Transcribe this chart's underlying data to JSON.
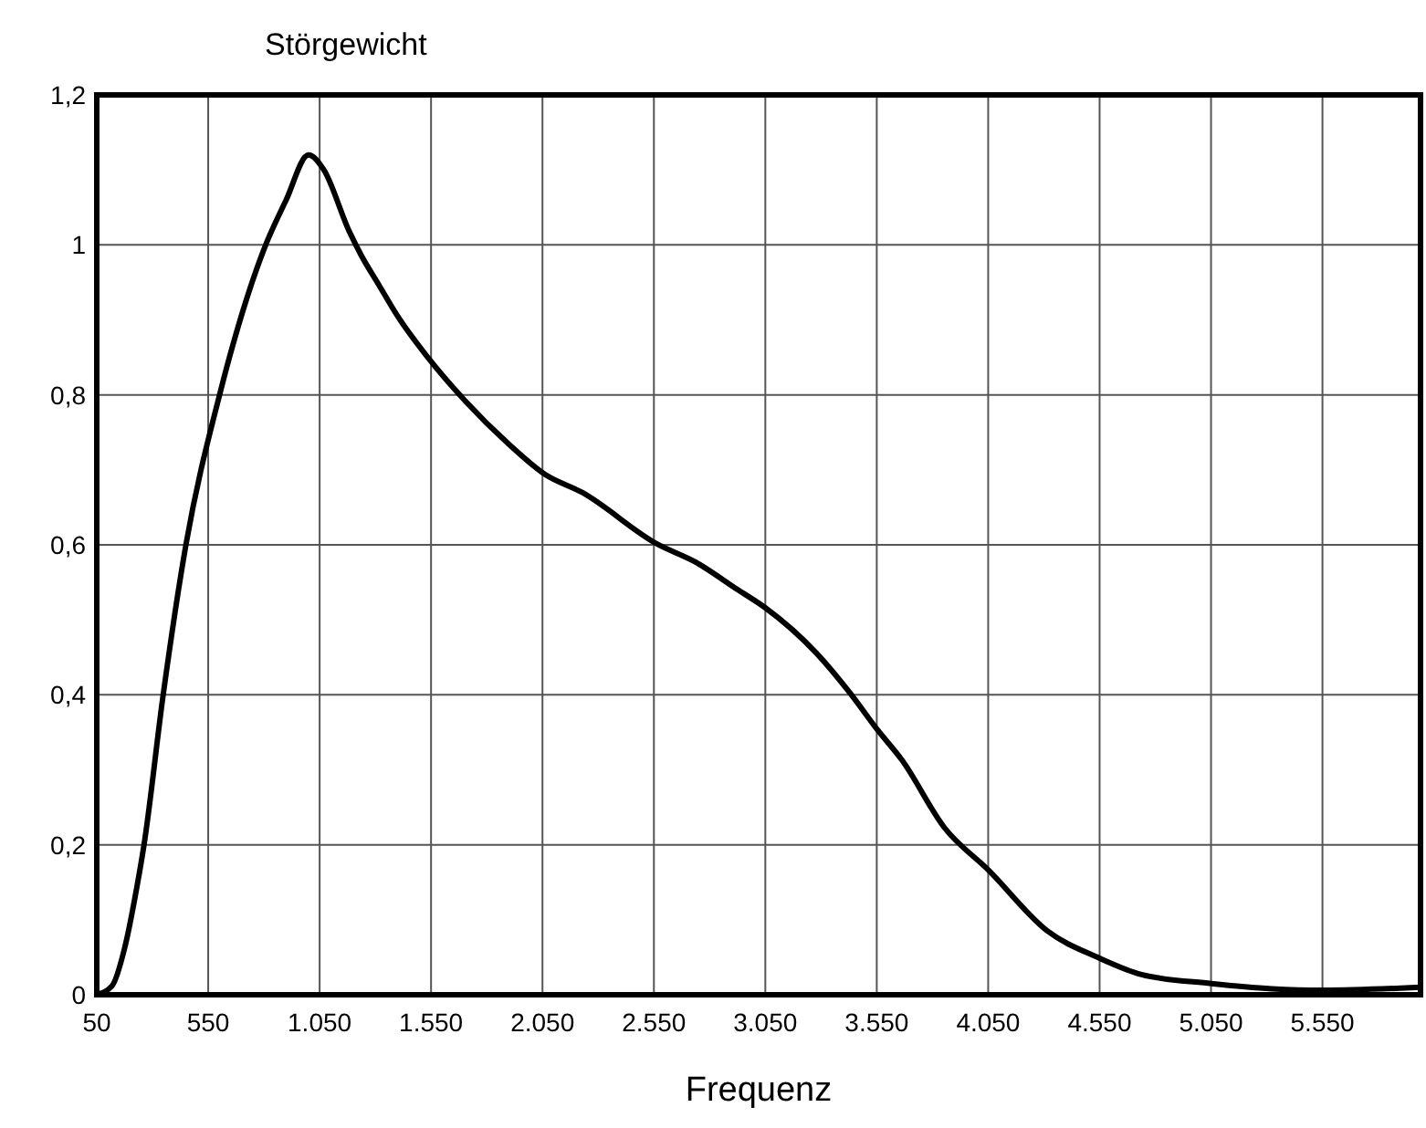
{
  "chart_data": {
    "type": "line",
    "xlabel": "Frequenz",
    "ylabel": "Störgewicht",
    "grid": true,
    "line_style": "solid",
    "marker": "none",
    "xlim": [
      50,
      5990
    ],
    "ylim": [
      0,
      1.2
    ],
    "xticks": [
      {
        "value": 50,
        "label": "50"
      },
      {
        "value": 550,
        "label": "550"
      },
      {
        "value": 1050,
        "label": "1.050"
      },
      {
        "value": 1550,
        "label": "1.550"
      },
      {
        "value": 2050,
        "label": "2.050"
      },
      {
        "value": 2550,
        "label": "2.550"
      },
      {
        "value": 3050,
        "label": "3.050"
      },
      {
        "value": 3550,
        "label": "3.550"
      },
      {
        "value": 4050,
        "label": "4.050"
      },
      {
        "value": 4550,
        "label": "4.550"
      },
      {
        "value": 5050,
        "label": "5.050"
      },
      {
        "value": 5550,
        "label": "5.550"
      }
    ],
    "yticks": [
      0,
      {
        "value": 0.2,
        "label": "0,2"
      },
      {
        "value": 0.4,
        "label": "0,4"
      },
      {
        "value": 0.6,
        "label": "0,6"
      },
      {
        "value": 0.8,
        "label": "0,8"
      },
      1,
      {
        "value": 1.2,
        "label": "1,2"
      }
    ],
    "series": [
      {
        "color": "#000000",
        "x": [
          50,
          119,
          174,
          229,
          262,
          348,
          450,
          601,
          808,
          900,
          1000,
          1069,
          1180,
          1235,
          1317,
          1400,
          1538,
          1703,
          1896,
          2061,
          2227,
          2565,
          2737,
          2927,
          3050,
          3281,
          3431,
          3554,
          3663,
          3853,
          4052,
          4316,
          4548,
          4738,
          5051,
          5324,
          5550,
          5990
        ],
        "values": [
          0,
          0.012,
          0.061,
          0.142,
          0.2,
          0.4,
          0.6,
          0.8,
          1.0,
          1.06,
          1.12,
          1.1,
          1.02,
          0.987,
          0.946,
          0.905,
          0.849,
          0.792,
          0.735,
          0.694,
          0.67,
          0.601,
          0.577,
          0.54,
          0.516,
          0.455,
          0.402,
          0.353,
          0.313,
          0.223,
          0.166,
          0.085,
          0.049,
          0.027,
          0.015,
          0.008,
          0.006,
          0.01
        ]
      }
    ]
  }
}
